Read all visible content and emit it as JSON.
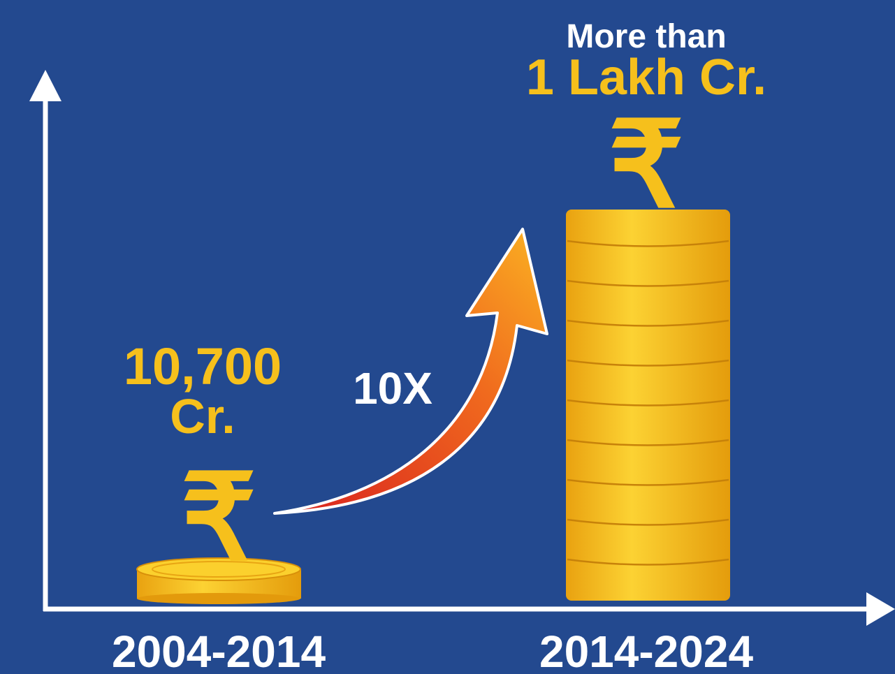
{
  "currency_symbol": "₹",
  "growth": "10X",
  "periods": [
    {
      "label": "2004-2014",
      "amount": "10,700",
      "unit": "Cr."
    },
    {
      "label": "2014-2024",
      "prefix": "More than",
      "amount": "1 Lakh Cr."
    }
  ]
}
